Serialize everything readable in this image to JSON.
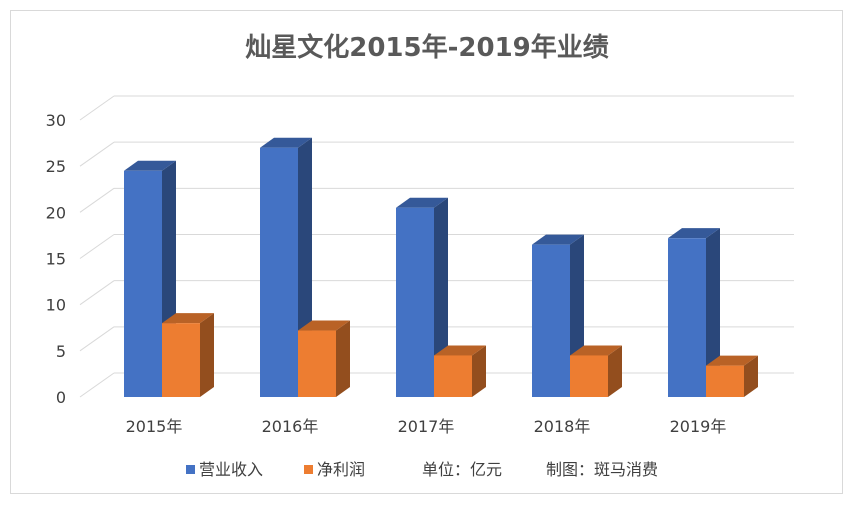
{
  "chart_data": {
    "type": "bar",
    "title": "灿星文化2015年-2019年业绩",
    "categories": [
      "2015年",
      "2016年",
      "2017年",
      "2018年",
      "2019年"
    ],
    "series": [
      {
        "name": "营业收入",
        "values": [
          24.5,
          27.0,
          20.5,
          16.5,
          17.2
        ],
        "color": "#4472C4"
      },
      {
        "name": "净利润",
        "values": [
          8.0,
          7.2,
          4.5,
          4.5,
          3.4
        ],
        "color": "#ED7D31"
      }
    ],
    "ylim": [
      0,
      30
    ],
    "yticks": [
      "0",
      "5",
      "10",
      "15",
      "20",
      "25",
      "30"
    ],
    "grid": true,
    "legend_position": "bottom",
    "notes": [
      "单位：亿元",
      "制图：斑马消费"
    ]
  }
}
